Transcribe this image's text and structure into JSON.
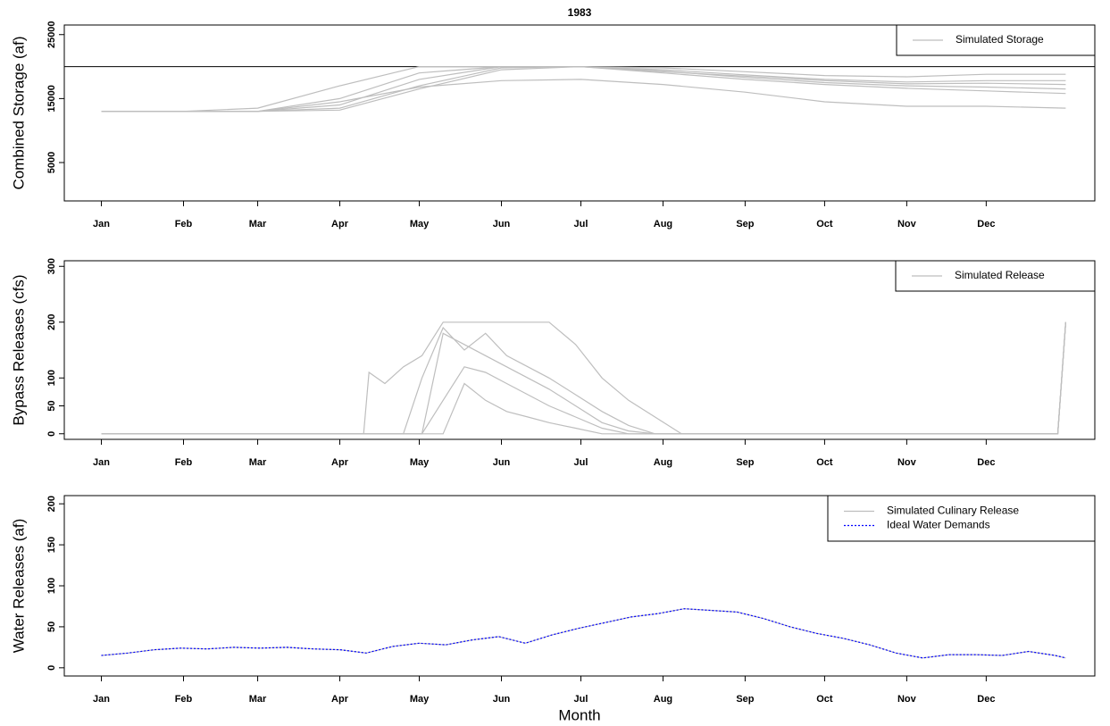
{
  "chart_data": [
    {
      "type": "line",
      "title": "1983",
      "ylabel": "Combined Storage (af)",
      "legend": "topright",
      "hline": 20000,
      "x": [
        1,
        32,
        60,
        91,
        121,
        152,
        182,
        213,
        244,
        274,
        305,
        335,
        365
      ],
      "xlim": [
        -13,
        376
      ],
      "xticks": [
        {
          "value": 1,
          "label": "Jan"
        },
        {
          "value": 32,
          "label": "Feb"
        },
        {
          "value": 60,
          "label": "Mar"
        },
        {
          "value": 91,
          "label": "Apr"
        },
        {
          "value": 121,
          "label": "May"
        },
        {
          "value": 152,
          "label": "Jun"
        },
        {
          "value": 182,
          "label": "Jul"
        },
        {
          "value": 213,
          "label": "Aug"
        },
        {
          "value": 244,
          "label": "Sep"
        },
        {
          "value": 274,
          "label": "Oct"
        },
        {
          "value": 305,
          "label": "Nov"
        },
        {
          "value": 335,
          "label": "Dec"
        }
      ],
      "ylim": [
        -1000,
        26500
      ],
      "yticks": [
        5000,
        15000,
        25000
      ],
      "series": [
        {
          "name": "Simulated Storage",
          "color": "#bebebe",
          "values": [
            13000,
            13000,
            13500,
            17000,
            20000,
            20000,
            20000,
            19800,
            19200,
            18600,
            18400,
            18800,
            18800
          ]
        },
        {
          "color": "#bebebe",
          "values": [
            13000,
            13000,
            13000,
            15000,
            19000,
            20000,
            20000,
            19500,
            18700,
            18000,
            17600,
            17800,
            17800
          ]
        },
        {
          "color": "#bebebe",
          "values": [
            13000,
            13000,
            13000,
            14000,
            18000,
            20000,
            20000,
            19300,
            18300,
            17500,
            17000,
            16800,
            16500
          ]
        },
        {
          "color": "#bebebe",
          "values": [
            13000,
            13000,
            13000,
            13500,
            17000,
            19800,
            20000,
            19000,
            18000,
            17200,
            16600,
            16200,
            15800
          ]
        },
        {
          "color": "#bebebe",
          "values": [
            13000,
            13000,
            13000,
            13200,
            16500,
            19500,
            20000,
            19200,
            18500,
            17800,
            17300,
            17400,
            17200
          ]
        },
        {
          "color": "#bebebe",
          "values": [
            13000,
            13000,
            13000,
            14500,
            16800,
            17800,
            18000,
            17200,
            16000,
            14500,
            13800,
            13800,
            13500
          ]
        }
      ]
    },
    {
      "type": "line",
      "ylabel": "Bypass Releases (cfs)",
      "legend": "topright",
      "x": [
        1,
        100,
        102,
        108,
        115,
        122,
        130,
        138,
        146,
        154,
        162,
        170,
        180,
        190,
        200,
        210,
        220,
        362,
        365
      ],
      "xlim": [
        -13,
        376
      ],
      "xticks": [
        {
          "value": 1,
          "label": "Jan"
        },
        {
          "value": 32,
          "label": "Feb"
        },
        {
          "value": 60,
          "label": "Mar"
        },
        {
          "value": 91,
          "label": "Apr"
        },
        {
          "value": 121,
          "label": "May"
        },
        {
          "value": 152,
          "label": "Jun"
        },
        {
          "value": 182,
          "label": "Jul"
        },
        {
          "value": 213,
          "label": "Aug"
        },
        {
          "value": 244,
          "label": "Sep"
        },
        {
          "value": 274,
          "label": "Oct"
        },
        {
          "value": 305,
          "label": "Nov"
        },
        {
          "value": 335,
          "label": "Dec"
        }
      ],
      "ylim": [
        -10,
        310
      ],
      "yticks": [
        0,
        50,
        100,
        200,
        300
      ],
      "series": [
        {
          "name": "Simulated Release",
          "color": "#bebebe",
          "values": [
            0,
            0,
            110,
            90,
            120,
            140,
            200,
            200,
            200,
            200,
            200,
            200,
            160,
            100,
            60,
            30,
            0,
            0,
            200
          ]
        },
        {
          "color": "#bebebe",
          "values": [
            0,
            0,
            0,
            0,
            0,
            100,
            190,
            150,
            180,
            140,
            120,
            100,
            70,
            40,
            15,
            0,
            0,
            0,
            200
          ]
        },
        {
          "color": "#bebebe",
          "values": [
            0,
            0,
            0,
            0,
            0,
            0,
            60,
            120,
            110,
            90,
            70,
            50,
            30,
            10,
            0,
            0,
            0,
            0,
            200
          ]
        },
        {
          "color": "#bebebe",
          "values": [
            0,
            0,
            0,
            0,
            0,
            0,
            180,
            160,
            140,
            120,
            100,
            80,
            50,
            20,
            5,
            0,
            0,
            0,
            200
          ]
        },
        {
          "color": "#bebebe",
          "values": [
            0,
            0,
            0,
            0,
            0,
            0,
            0,
            90,
            60,
            40,
            30,
            20,
            10,
            0,
            0,
            0,
            0,
            0,
            200
          ]
        }
      ]
    },
    {
      "type": "line",
      "ylabel": "Water Releases (af)",
      "xlabel": "Month",
      "legend": "topright",
      "x": [
        1,
        11,
        21,
        31,
        41,
        51,
        61,
        71,
        81,
        91,
        101,
        111,
        121,
        131,
        141,
        151,
        161,
        171,
        181,
        191,
        201,
        211,
        221,
        231,
        241,
        251,
        261,
        271,
        281,
        291,
        301,
        311,
        321,
        331,
        341,
        351,
        361,
        365
      ],
      "xlim": [
        -13,
        376
      ],
      "xticks": [
        {
          "value": 1,
          "label": "Jan"
        },
        {
          "value": 32,
          "label": "Feb"
        },
        {
          "value": 60,
          "label": "Mar"
        },
        {
          "value": 91,
          "label": "Apr"
        },
        {
          "value": 121,
          "label": "May"
        },
        {
          "value": 152,
          "label": "Jun"
        },
        {
          "value": 182,
          "label": "Jul"
        },
        {
          "value": 213,
          "label": "Aug"
        },
        {
          "value": 244,
          "label": "Sep"
        },
        {
          "value": 274,
          "label": "Oct"
        },
        {
          "value": 305,
          "label": "Nov"
        },
        {
          "value": 335,
          "label": "Dec"
        }
      ],
      "ylim": [
        -10,
        210
      ],
      "yticks": [
        0,
        50,
        100,
        150,
        200
      ],
      "series": [
        {
          "name": "Simulated Culinary Release",
          "color": "#bebebe",
          "values": [
            15,
            18,
            22,
            24,
            23,
            25,
            24,
            25,
            23,
            22,
            18,
            26,
            30,
            28,
            34,
            38,
            30,
            40,
            48,
            55,
            62,
            66,
            72,
            70,
            68,
            60,
            50,
            42,
            36,
            28,
            18,
            12,
            16,
            16,
            15,
            20,
            15,
            12
          ]
        },
        {
          "name": "Ideal Water Demands",
          "color": "#0000ff",
          "dash": "dotted",
          "values": [
            15,
            18,
            22,
            24,
            23,
            25,
            24,
            25,
            23,
            22,
            18,
            26,
            30,
            28,
            34,
            38,
            30,
            40,
            48,
            55,
            62,
            66,
            72,
            70,
            68,
            60,
            50,
            42,
            36,
            28,
            18,
            12,
            16,
            16,
            15,
            20,
            15,
            12
          ]
        }
      ]
    }
  ]
}
